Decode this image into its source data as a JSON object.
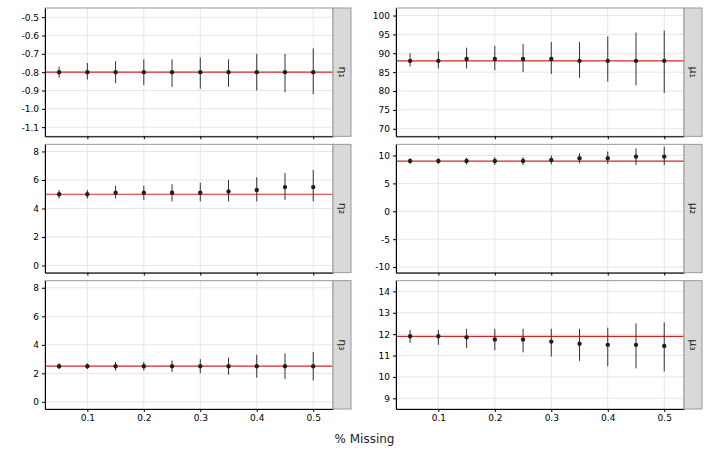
{
  "chart_data": [
    {
      "type": "errorbar",
      "title": "η₁",
      "x": [
        0.05,
        0.1,
        0.15,
        0.2,
        0.25,
        0.3,
        0.35,
        0.4,
        0.45,
        0.5
      ],
      "values": [
        -0.8,
        -0.8,
        -0.8,
        -0.8,
        -0.8,
        -0.8,
        -0.8,
        -0.8,
        -0.8,
        -0.8
      ],
      "err_lo": [
        0.03,
        0.04,
        0.06,
        0.07,
        0.08,
        0.09,
        0.08,
        0.1,
        0.11,
        0.12
      ],
      "err_hi": [
        0.03,
        0.05,
        0.06,
        0.07,
        0.07,
        0.08,
        0.07,
        0.1,
        0.1,
        0.13
      ],
      "ref_line": -0.8,
      "xlim": [
        0.025,
        0.535
      ],
      "xticks": [
        0.1,
        0.2,
        0.3,
        0.4,
        0.5
      ],
      "ylim": [
        -1.15,
        -0.45
      ],
      "yticks": [
        -0.5,
        -0.6,
        -0.7,
        -0.8,
        -0.9,
        {
          "value": -1.0,
          "label": "-1.0"
        },
        -1.1
      ],
      "grid": true,
      "tick_labels": "y"
    },
    {
      "type": "errorbar",
      "title": "η₂",
      "x": [
        0.05,
        0.1,
        0.15,
        0.2,
        0.25,
        0.3,
        0.35,
        0.4,
        0.45,
        0.5
      ],
      "values": [
        5.0,
        5.0,
        5.1,
        5.1,
        5.1,
        5.1,
        5.2,
        5.3,
        5.5,
        5.5
      ],
      "err_lo": [
        0.3,
        0.3,
        0.4,
        0.5,
        0.6,
        0.6,
        0.7,
        0.8,
        0.9,
        1.0
      ],
      "err_hi": [
        0.3,
        0.3,
        0.5,
        0.5,
        0.6,
        0.7,
        0.8,
        0.9,
        1.0,
        1.2
      ],
      "ref_line": 5.0,
      "xlim": [
        0.025,
        0.535
      ],
      "xticks": [
        0.1,
        0.2,
        0.3,
        0.4,
        0.5
      ],
      "ylim": [
        -0.5,
        8.5
      ],
      "yticks": [
        0,
        2,
        4,
        6,
        8
      ],
      "grid": true,
      "tick_labels": "y"
    },
    {
      "type": "errorbar",
      "title": "η₃",
      "x": [
        0.05,
        0.1,
        0.15,
        0.2,
        0.25,
        0.3,
        0.35,
        0.4,
        0.45,
        0.5
      ],
      "values": [
        2.5,
        2.5,
        2.5,
        2.5,
        2.5,
        2.5,
        2.5,
        2.5,
        2.5,
        2.5
      ],
      "err_lo": [
        0.2,
        0.2,
        0.3,
        0.3,
        0.4,
        0.5,
        0.6,
        0.8,
        0.9,
        1.0
      ],
      "err_hi": [
        0.2,
        0.2,
        0.3,
        0.3,
        0.4,
        0.5,
        0.6,
        0.8,
        0.9,
        1.0
      ],
      "ref_line": 2.5,
      "xlim": [
        0.025,
        0.535
      ],
      "xticks": [
        0.1,
        0.2,
        0.3,
        0.4,
        0.5
      ],
      "ylim": [
        -0.5,
        8.5
      ],
      "yticks": [
        0,
        2,
        4,
        6,
        8
      ],
      "grid": true
    },
    {
      "type": "errorbar",
      "title": "μ₁",
      "x": [
        0.05,
        0.1,
        0.15,
        0.2,
        0.25,
        0.3,
        0.35,
        0.4,
        0.45,
        0.5
      ],
      "values": [
        88.0,
        88.0,
        88.5,
        88.5,
        88.5,
        88.5,
        88.0,
        88.0,
        88.0,
        88.0
      ],
      "err_lo": [
        1.5,
        2.0,
        2.5,
        3.0,
        3.5,
        4.0,
        4.5,
        5.5,
        6.5,
        8.5
      ],
      "err_hi": [
        2.0,
        2.5,
        3.0,
        3.5,
        4.0,
        4.5,
        5.0,
        6.5,
        7.5,
        8.0
      ],
      "ref_line": 88.0,
      "xlim": [
        0.025,
        0.535
      ],
      "xticks": [
        0.1,
        0.2,
        0.3,
        0.4,
        0.5
      ],
      "ylim": [
        68,
        102
      ],
      "yticks": [
        70,
        75,
        80,
        85,
        90,
        95,
        100
      ],
      "grid": true,
      "tick_labels": "y"
    },
    {
      "type": "errorbar",
      "title": "μ₂",
      "x": [
        0.05,
        0.1,
        0.15,
        0.2,
        0.25,
        0.3,
        0.35,
        0.4,
        0.45,
        0.5
      ],
      "values": [
        9.0,
        9.0,
        9.0,
        9.0,
        9.0,
        9.2,
        9.5,
        9.5,
        9.8,
        9.8
      ],
      "err_lo": [
        0.5,
        0.5,
        0.6,
        0.7,
        0.7,
        0.8,
        0.9,
        1.0,
        1.5,
        1.5
      ],
      "err_hi": [
        0.5,
        0.5,
        0.6,
        0.7,
        0.7,
        0.8,
        0.9,
        1.2,
        1.5,
        1.8
      ],
      "ref_line": 9.0,
      "xlim": [
        0.025,
        0.535
      ],
      "xticks": [
        0.1,
        0.2,
        0.3,
        0.4,
        0.5
      ],
      "ylim": [
        -11,
        12
      ],
      "yticks": [
        -10,
        -5,
        0,
        5,
        10
      ],
      "grid": true,
      "tick_labels": "y"
    },
    {
      "type": "errorbar",
      "title": "μ₃",
      "x": [
        0.05,
        0.1,
        0.15,
        0.2,
        0.25,
        0.3,
        0.35,
        0.4,
        0.45,
        0.5
      ],
      "values": [
        11.9,
        11.9,
        11.85,
        11.75,
        11.75,
        11.65,
        11.55,
        11.5,
        11.5,
        11.45
      ],
      "err_lo": [
        0.3,
        0.4,
        0.5,
        0.5,
        0.6,
        0.7,
        0.8,
        1.0,
        1.1,
        1.2
      ],
      "err_hi": [
        0.3,
        0.3,
        0.4,
        0.5,
        0.5,
        0.6,
        0.7,
        0.8,
        1.0,
        1.1
      ],
      "ref_line": 11.9,
      "xlim": [
        0.025,
        0.535
      ],
      "xticks": [
        0.1,
        0.2,
        0.3,
        0.4,
        0.5
      ],
      "ylim": [
        8.5,
        14.5
      ],
      "yticks": [
        9,
        10,
        11,
        12,
        13,
        14
      ],
      "grid": true,
      "xlabel": "% Missing"
    }
  ]
}
